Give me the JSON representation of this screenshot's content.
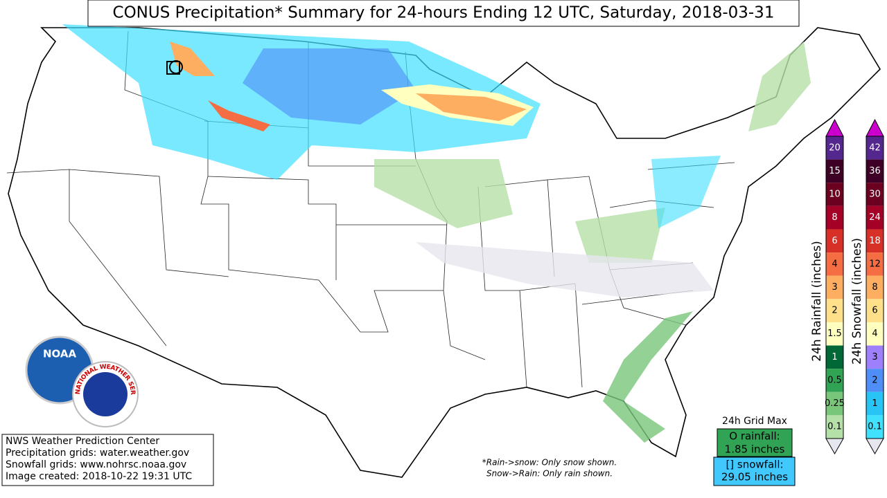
{
  "header": {
    "title": "CONUS Precipitation* Summary for 24-hours Ending 12 UTC, Saturday, 2018-03-31"
  },
  "credits": [
    "NWS Weather Prediction Center",
    "Precipitation grids: water.weather.gov",
    "Snowfall grids: www.nohrsc.noaa.gov",
    "Image created: 2018-10-22 19:31 UTC"
  ],
  "notes": [
    "*Rain->snow: Only snow shown.",
    "Snow->Rain: Only rain shown."
  ],
  "grid_max": {
    "title": "24h Grid Max",
    "rain_label": "O rainfall:",
    "rain_value": "1.85 inches",
    "snow_label": "[] snowfall:",
    "snow_value": "29.05 inches"
  },
  "logos": {
    "noaa": "NOAA",
    "nws": "NATIONAL WEATHER SERVICE"
  },
  "colorbars": [
    {
      "title": "24h Rainfall (inches)",
      "over_color": "#cc00cc",
      "under_color": "#e6e6ee",
      "labels": [
        "20",
        "15",
        "10",
        "8",
        "6",
        "4",
        "3",
        "2",
        "1.5",
        "1",
        "0.5",
        "0.25",
        "0.1"
      ],
      "colors": [
        "#54278f",
        "#3f0025",
        "#6b0020",
        "#a50026",
        "#d73027",
        "#f46d43",
        "#fdae61",
        "#fee08b",
        "#ffffbf",
        "#006837",
        "#31a354",
        "#78c679",
        "#b5e0a8"
      ]
    },
    {
      "title": "24h Snowfall (inches)",
      "over_color": "#cc00cc",
      "under_color": "#e6e6ee",
      "labels": [
        "42",
        "36",
        "30",
        "24",
        "18",
        "12",
        "8",
        "6",
        "4",
        "3",
        "2",
        "1",
        "0.1"
      ],
      "colors": [
        "#54278f",
        "#3f0025",
        "#6b0020",
        "#a50026",
        "#d73027",
        "#f46d43",
        "#fdae61",
        "#fee08b",
        "#ffffbf",
        "#9e7ffc",
        "#4f8ef7",
        "#28c4f5",
        "#40e0ff"
      ]
    }
  ]
}
